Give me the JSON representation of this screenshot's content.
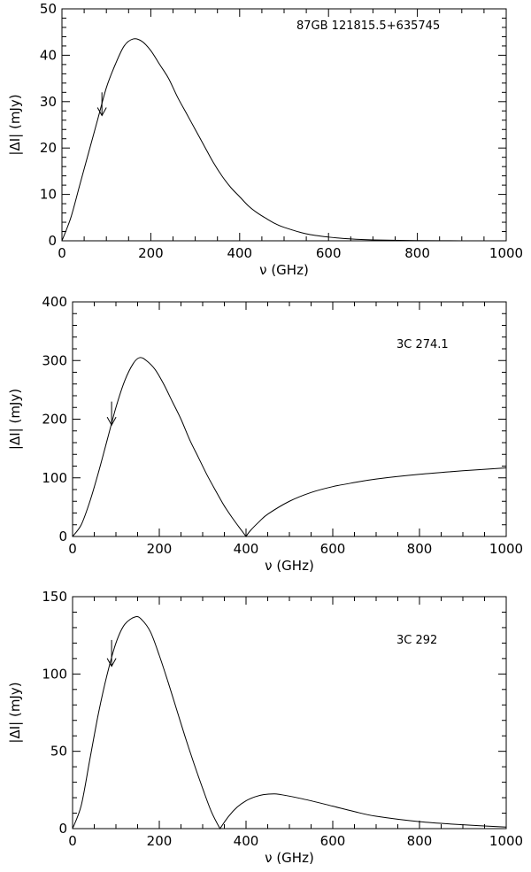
{
  "chart_data": [
    {
      "type": "line",
      "title": "",
      "annotation": "87GB 121815.5+635745",
      "xlabel": "ν (GHz)",
      "ylabel": "|ΔI| (mJy)",
      "xlim": [
        0,
        1000
      ],
      "ylim": [
        0,
        50
      ],
      "x_ticks": [
        "0",
        "200",
        "400",
        "600",
        "800",
        "1000"
      ],
      "y_ticks": [
        "0",
        "10",
        "20",
        "30",
        "40",
        "50"
      ],
      "grid": false,
      "arrow": {
        "x": 90,
        "y_top": 32,
        "y_tip": 27
      },
      "series": [
        {
          "x": [
            0,
            20,
            40,
            60,
            80,
            100,
            120,
            140,
            160,
            180,
            200,
            220,
            240,
            260,
            280,
            300,
            320,
            340,
            360,
            380,
            400,
            420,
            440,
            460,
            480,
            500,
            550,
            600,
            650,
            700,
            800,
            900,
            1000
          ],
          "y": [
            0,
            5,
            12,
            19,
            26,
            33,
            38,
            42,
            43.5,
            43,
            41,
            38,
            35,
            31,
            27.5,
            24,
            20.5,
            17,
            14,
            11.5,
            9.5,
            7.5,
            6,
            4.8,
            3.7,
            2.9,
            1.5,
            0.8,
            0.4,
            0.2,
            0.05,
            0.01,
            0
          ]
        }
      ]
    },
    {
      "type": "line",
      "title": "",
      "annotation": "3C 274.1",
      "xlabel": "ν (GHz)",
      "ylabel": "|ΔI| (mJy)",
      "xlim": [
        0,
        1000
      ],
      "ylim": [
        0,
        400
      ],
      "x_ticks": [
        "0",
        "200",
        "400",
        "600",
        "800",
        "1000"
      ],
      "y_ticks": [
        "0",
        "100",
        "200",
        "300",
        "400"
      ],
      "grid": false,
      "arrow": {
        "x": 90,
        "y_top": 230,
        "y_tip": 190
      },
      "series": [
        {
          "x": [
            0,
            20,
            40,
            60,
            80,
            100,
            120,
            140,
            155,
            170,
            190,
            210,
            230,
            250,
            270,
            290,
            310,
            330,
            350,
            370,
            390,
            400,
            410,
            430,
            450,
            500,
            550,
            600,
            650,
            700,
            800,
            900,
            1000
          ],
          "y": [
            0,
            20,
            60,
            110,
            165,
            220,
            265,
            295,
            305,
            300,
            285,
            260,
            230,
            200,
            165,
            135,
            105,
            78,
            52,
            30,
            10,
            0,
            10,
            25,
            38,
            60,
            75,
            85,
            92,
            98,
            106,
            112,
            117
          ]
        }
      ]
    },
    {
      "type": "line",
      "title": "",
      "annotation": "3C 292",
      "xlabel": "ν (GHz)",
      "ylabel": "|ΔI| (mJy)",
      "xlim": [
        0,
        1000
      ],
      "ylim": [
        0,
        150
      ],
      "x_ticks": [
        "0",
        "200",
        "400",
        "600",
        "800",
        "1000"
      ],
      "y_ticks": [
        "0",
        "50",
        "100",
        "150"
      ],
      "grid": false,
      "arrow": {
        "x": 90,
        "y_top": 122,
        "y_tip": 105
      },
      "series": [
        {
          "x": [
            0,
            20,
            40,
            60,
            80,
            100,
            120,
            145,
            160,
            180,
            200,
            220,
            240,
            260,
            280,
            300,
            320,
            340,
            360,
            380,
            400,
            420,
            440,
            465,
            480,
            500,
            550,
            600,
            650,
            700,
            800,
            900,
            1000
          ],
          "y": [
            0,
            15,
            45,
            75,
            100,
            120,
            132,
            137,
            135,
            127,
            112,
            95,
            77,
            59,
            42,
            26,
            11,
            0,
            8,
            14,
            18,
            20.5,
            22,
            22.5,
            22,
            21,
            18,
            14.5,
            11,
            8,
            4.5,
            2.5,
            1
          ]
        }
      ]
    }
  ]
}
